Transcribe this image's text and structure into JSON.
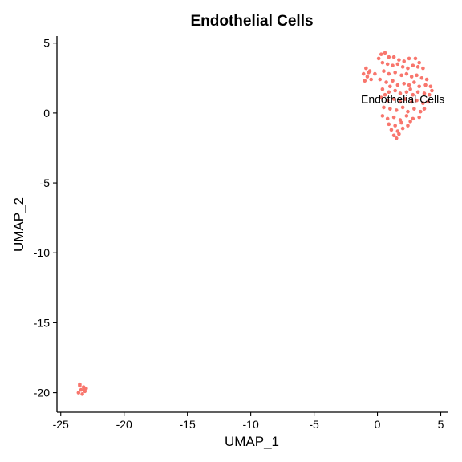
{
  "chart_data": {
    "type": "scatter",
    "title": "Endothelial Cells",
    "xlabel": "UMAP_1",
    "ylabel": "UMAP_2",
    "xlim": [
      -25.3,
      5.6
    ],
    "ylim": [
      -21.4,
      5.5
    ],
    "xticks": [
      -25,
      -20,
      -15,
      -10,
      -5,
      0,
      5
    ],
    "yticks": [
      5,
      0,
      -5,
      -10,
      -15,
      -20
    ],
    "grid": false,
    "legend": "none",
    "point_color": "#F8766D",
    "series": [
      {
        "label": "Endothelial Cells",
        "label_position": [
          2.0,
          0.7
        ],
        "points": [
          [
            0.3,
            4.2
          ],
          [
            0.6,
            4.3
          ],
          [
            0.9,
            4.0
          ],
          [
            1.3,
            4.0
          ],
          [
            1.7,
            3.8
          ],
          [
            2.1,
            3.7
          ],
          [
            2.5,
            3.9
          ],
          [
            3.0,
            3.9
          ],
          [
            3.3,
            3.6
          ],
          [
            0.4,
            3.6
          ],
          [
            0.8,
            3.5
          ],
          [
            1.2,
            3.4
          ],
          [
            1.6,
            3.5
          ],
          [
            2.0,
            3.3
          ],
          [
            2.4,
            3.2
          ],
          [
            2.8,
            3.4
          ],
          [
            3.2,
            3.3
          ],
          [
            3.6,
            3.2
          ],
          [
            -0.9,
            3.2
          ],
          [
            -0.6,
            3.0
          ],
          [
            -1.1,
            2.8
          ],
          [
            -0.8,
            2.6
          ],
          [
            -0.5,
            2.4
          ],
          [
            -1.0,
            2.3
          ],
          [
            -0.7,
            2.9
          ],
          [
            -0.2,
            2.8
          ],
          [
            0.5,
            3.0
          ],
          [
            0.9,
            2.8
          ],
          [
            1.4,
            2.9
          ],
          [
            1.9,
            2.7
          ],
          [
            2.3,
            2.8
          ],
          [
            2.7,
            2.6
          ],
          [
            3.1,
            2.7
          ],
          [
            3.5,
            2.5
          ],
          [
            3.9,
            2.4
          ],
          [
            0.2,
            2.4
          ],
          [
            0.7,
            2.2
          ],
          [
            1.2,
            2.3
          ],
          [
            1.6,
            2.0
          ],
          [
            2.1,
            2.1
          ],
          [
            2.5,
            2.0
          ],
          [
            2.9,
            2.2
          ],
          [
            3.3,
            1.9
          ],
          [
            3.8,
            2.0
          ],
          [
            4.2,
            1.9
          ],
          [
            0.4,
            1.7
          ],
          [
            0.9,
            1.5
          ],
          [
            1.4,
            1.6
          ],
          [
            1.8,
            1.4
          ],
          [
            2.3,
            1.5
          ],
          [
            2.8,
            1.3
          ],
          [
            3.2,
            1.5
          ],
          [
            3.7,
            1.4
          ],
          [
            4.1,
            1.3
          ],
          [
            0.3,
            1.1
          ],
          [
            0.8,
            0.9
          ],
          [
            1.3,
            1.0
          ],
          [
            1.8,
            0.8
          ],
          [
            2.2,
            1.0
          ],
          [
            2.7,
            0.8
          ],
          [
            3.1,
            0.9
          ],
          [
            3.6,
            0.7
          ],
          [
            4.0,
            0.8
          ],
          [
            0.5,
            0.4
          ],
          [
            1.0,
            0.3
          ],
          [
            1.5,
            0.2
          ],
          [
            2.0,
            0.4
          ],
          [
            2.4,
            0.1
          ],
          [
            2.9,
            0.3
          ],
          [
            3.4,
            0.1
          ],
          [
            0.4,
            -0.2
          ],
          [
            0.8,
            -0.4
          ],
          [
            1.3,
            -0.3
          ],
          [
            1.8,
            -0.5
          ],
          [
            2.3,
            -0.2
          ],
          [
            2.8,
            -0.4
          ],
          [
            3.3,
            -0.3
          ],
          [
            0.9,
            -0.8
          ],
          [
            1.4,
            -0.9
          ],
          [
            1.9,
            -0.7
          ],
          [
            2.4,
            -0.9
          ],
          [
            1.1,
            -1.2
          ],
          [
            1.6,
            -1.3
          ],
          [
            2.0,
            -1.1
          ],
          [
            1.3,
            -1.6
          ],
          [
            1.7,
            -1.5
          ],
          [
            1.5,
            -1.8
          ],
          [
            2.6,
            -0.6
          ],
          [
            3.7,
            0.3
          ],
          [
            4.3,
            1.6
          ],
          [
            0.1,
            3.9
          ],
          [
            1.0,
            1.9
          ],
          [
            2.6,
            1.7
          ],
          [
            0.6,
            1.3
          ]
        ]
      },
      {
        "label": "",
        "points": [
          [
            -23.5,
            -19.5
          ],
          [
            -23.2,
            -19.6
          ],
          [
            -23.4,
            -19.8
          ],
          [
            -23.1,
            -19.9
          ],
          [
            -23.6,
            -20.0
          ],
          [
            -23.3,
            -20.1
          ],
          [
            -23.0,
            -19.7
          ],
          [
            -23.5,
            -19.4
          ],
          [
            -23.2,
            -19.8
          ]
        ]
      }
    ]
  }
}
